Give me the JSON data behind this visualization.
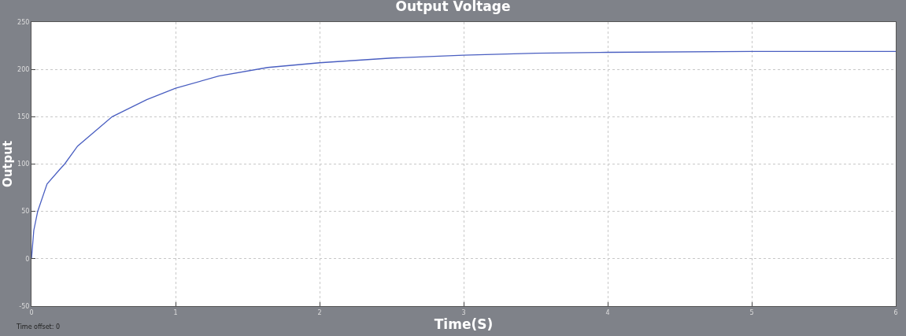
{
  "chart_data": {
    "type": "line",
    "title": "Output Voltage",
    "xlabel": "Time(S)",
    "ylabel": "Output",
    "annotations": [
      "Time offset: 0"
    ],
    "x": [
      0,
      0.016,
      0.043,
      0.108,
      0.2,
      0.23,
      0.32,
      0.56,
      0.8,
      1.0,
      1.3,
      1.64,
      2,
      2.5,
      3,
      3.5,
      4,
      5,
      6
    ],
    "series": [
      {
        "color": "#4a5fc1",
        "values": [
          0,
          30,
          50,
          79,
          95,
          100,
          119,
          150,
          168,
          180,
          193,
          202,
          207,
          212,
          215,
          217,
          218,
          219,
          219
        ]
      }
    ],
    "xlim": [
      0,
      6
    ],
    "xticks": [
      0,
      1,
      2,
      3,
      4,
      5,
      6
    ],
    "ylim": [
      -50,
      250
    ],
    "yticks": [
      -50,
      0,
      50,
      100,
      150,
      200,
      250
    ],
    "grid": true
  }
}
